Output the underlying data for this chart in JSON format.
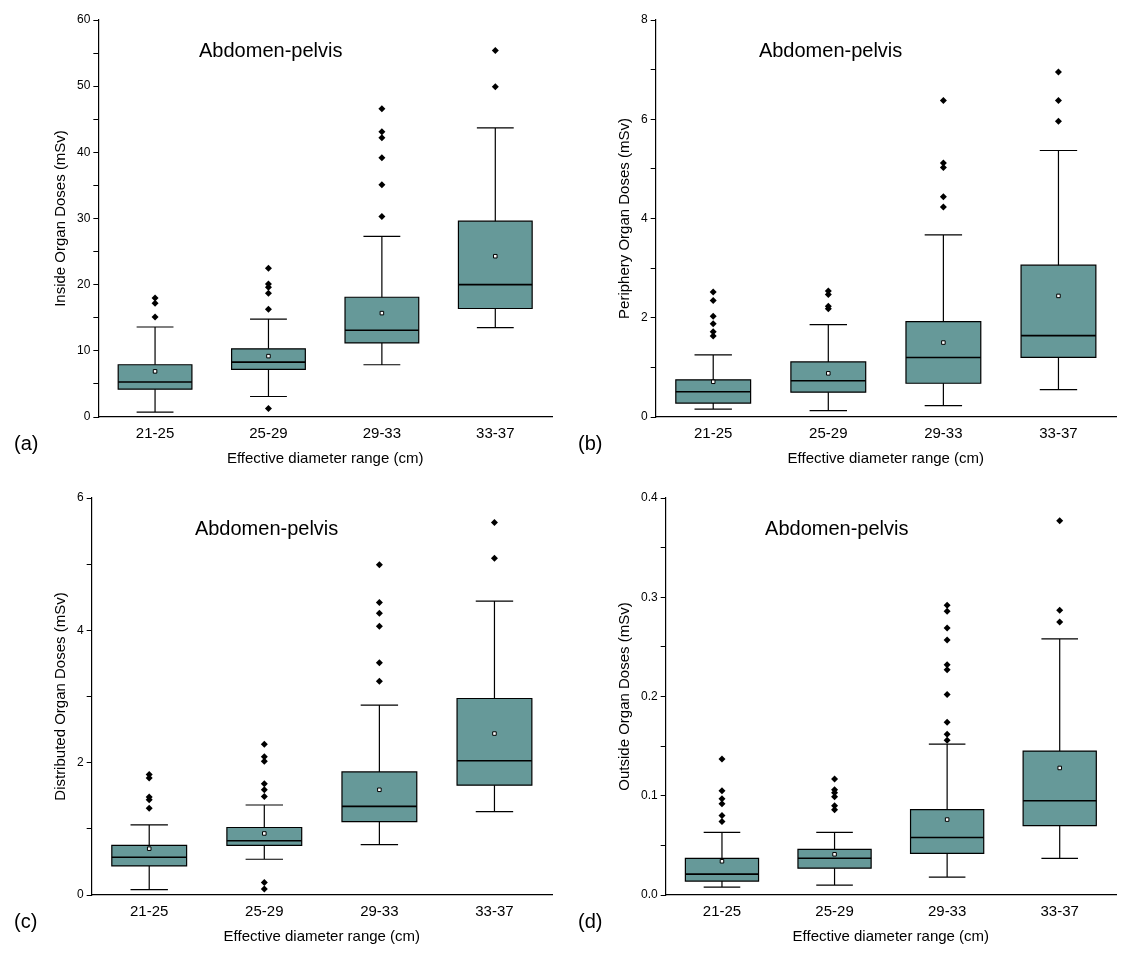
{
  "chart_data": [
    {
      "type": "box",
      "title": "Abdomen-pelvis",
      "xlabel": "Effective diameter range (cm)",
      "ylabel": "Inside Organ Doses (mSv)",
      "categories": [
        "21-25",
        "25-29",
        "29-33",
        "33-37"
      ],
      "color": "#669999",
      "marker": "diamond",
      "annotations": [
        "(a)"
      ],
      "ylim": [
        0,
        60
      ],
      "yticks": [
        0,
        {
          "value": 5,
          "label": null
        },
        10,
        {
          "value": 15,
          "label": null
        },
        20,
        {
          "value": 25,
          "label": null
        },
        30,
        {
          "value": 35,
          "label": null
        },
        40,
        {
          "value": 45,
          "label": null
        },
        50,
        {
          "value": 55,
          "label": null
        },
        60
      ],
      "boxes": [
        {
          "low": 0.75,
          "q1": 4.2,
          "median": 5.3,
          "q3": 7.9,
          "high": 13.6,
          "mean": 6.9,
          "outliers": [
            18.0,
            17.2,
            15.1
          ]
        },
        {
          "low": 3.1,
          "q1": 7.2,
          "median": 8.3,
          "q3": 10.3,
          "high": 14.8,
          "mean": 9.2,
          "outliers": [
            22.5,
            20.1,
            19.6,
            18.7,
            16.3,
            1.3
          ]
        },
        {
          "low": 7.9,
          "q1": 11.2,
          "median": 13.1,
          "q3": 18.1,
          "high": 27.3,
          "mean": 15.7,
          "outliers": [
            46.6,
            43.1,
            42.2,
            39.2,
            35.1,
            30.3
          ]
        },
        {
          "low": 13.5,
          "q1": 16.4,
          "median": 20.0,
          "q3": 29.6,
          "high": 43.7,
          "mean": 24.3,
          "outliers": [
            55.4,
            49.9
          ]
        }
      ]
    },
    {
      "type": "box",
      "title": "Abdomen-pelvis",
      "xlabel": "Effective diameter range (cm)",
      "ylabel": "Periphery Organ Doses (mSv)",
      "categories": [
        "21-25",
        "25-29",
        "29-33",
        "33-37"
      ],
      "color": "#669999",
      "marker": "diamond",
      "annotations": [
        "(b)"
      ],
      "ylim": [
        0,
        8
      ],
      "yticks": [
        0,
        {
          "value": 1,
          "label": null
        },
        2,
        {
          "value": 3,
          "label": null
        },
        4,
        {
          "value": 5,
          "label": null
        },
        6,
        {
          "value": 7,
          "label": null
        },
        8
      ],
      "boxes": [
        {
          "low": 0.16,
          "q1": 0.28,
          "median": 0.51,
          "q3": 0.75,
          "high": 1.25,
          "mean": 0.71,
          "outliers": [
            2.52,
            2.35,
            2.03,
            1.88,
            1.72,
            1.63
          ]
        },
        {
          "low": 0.13,
          "q1": 0.5,
          "median": 0.73,
          "q3": 1.11,
          "high": 1.86,
          "mean": 0.88,
          "outliers": [
            2.54,
            2.47,
            2.23,
            2.18
          ]
        },
        {
          "low": 0.23,
          "q1": 0.68,
          "median": 1.2,
          "q3": 1.92,
          "high": 3.67,
          "mean": 1.5,
          "outliers": [
            6.38,
            5.12,
            5.03,
            4.44,
            4.23
          ]
        },
        {
          "low": 0.55,
          "q1": 1.2,
          "median": 1.64,
          "q3": 3.06,
          "high": 5.37,
          "mean": 2.44,
          "outliers": [
            6.95,
            6.38,
            5.96
          ]
        }
      ]
    },
    {
      "type": "box",
      "title": "Abdomen-pelvis",
      "xlabel": "Effective diameter range (cm)",
      "ylabel": "Distributed Organ Doses (mSv)",
      "categories": [
        "21-25",
        "25-29",
        "29-33",
        "33-37"
      ],
      "color": "#669999",
      "marker": "diamond",
      "annotations": [
        "(c)"
      ],
      "ylim": [
        0,
        6
      ],
      "yticks": [
        0,
        {
          "value": 1,
          "label": null
        },
        2,
        {
          "value": 3,
          "label": null
        },
        4,
        {
          "value": 5,
          "label": null
        },
        6
      ],
      "boxes": [
        {
          "low": 0.08,
          "q1": 0.44,
          "median": 0.57,
          "q3": 0.75,
          "high": 1.06,
          "mean": 0.7,
          "outliers": [
            1.82,
            1.77,
            1.48,
            1.44,
            1.31
          ]
        },
        {
          "low": 0.54,
          "q1": 0.75,
          "median": 0.82,
          "q3": 1.02,
          "high": 1.36,
          "mean": 0.93,
          "outliers": [
            2.28,
            2.09,
            2.02,
            1.68,
            1.59,
            1.49,
            0.19,
            0.09
          ]
        },
        {
          "low": 0.76,
          "q1": 1.11,
          "median": 1.34,
          "q3": 1.86,
          "high": 2.87,
          "mean": 1.59,
          "outliers": [
            4.99,
            4.42,
            4.26,
            4.06,
            3.51,
            3.23
          ]
        },
        {
          "low": 1.26,
          "q1": 1.66,
          "median": 2.03,
          "q3": 2.97,
          "high": 4.44,
          "mean": 2.44,
          "outliers": [
            5.63,
            5.09
          ]
        }
      ]
    },
    {
      "type": "box",
      "title": "Abdomen-pelvis",
      "xlabel": "Effective diameter range (cm)",
      "ylabel": "Outside Organ Doses (mSv)",
      "categories": [
        "21-25",
        "25-29",
        "29-33",
        "33-37"
      ],
      "color": "#669999",
      "marker": "diamond",
      "annotations": [
        "(d)"
      ],
      "ylim": [
        0,
        0.4
      ],
      "yticks": [
        {
          "value": 0,
          "label": "0.0"
        },
        {
          "value": 0.05,
          "label": null
        },
        0.1,
        {
          "value": 0.15,
          "label": null
        },
        0.2,
        {
          "value": 0.25,
          "label": null
        },
        0.3,
        {
          "value": 0.35,
          "label": null
        },
        0.4
      ],
      "boxes": [
        {
          "low": 0.008,
          "q1": 0.014,
          "median": 0.021,
          "q3": 0.037,
          "high": 0.063,
          "mean": 0.034,
          "outliers": [
            0.137,
            0.105,
            0.097,
            0.092,
            0.08,
            0.074
          ]
        },
        {
          "low": 0.01,
          "q1": 0.027,
          "median": 0.037,
          "q3": 0.046,
          "high": 0.063,
          "mean": 0.041,
          "outliers": [
            0.117,
            0.106,
            0.103,
            0.099,
            0.09,
            0.086
          ]
        },
        {
          "low": 0.018,
          "q1": 0.042,
          "median": 0.058,
          "q3": 0.086,
          "high": 0.152,
          "mean": 0.076,
          "outliers": [
            0.292,
            0.286,
            0.269,
            0.257,
            0.232,
            0.227,
            0.202,
            0.174,
            0.162,
            0.156
          ]
        },
        {
          "low": 0.037,
          "q1": 0.07,
          "median": 0.095,
          "q3": 0.145,
          "high": 0.258,
          "mean": 0.128,
          "outliers": [
            0.377,
            0.287,
            0.275
          ]
        }
      ]
    }
  ]
}
